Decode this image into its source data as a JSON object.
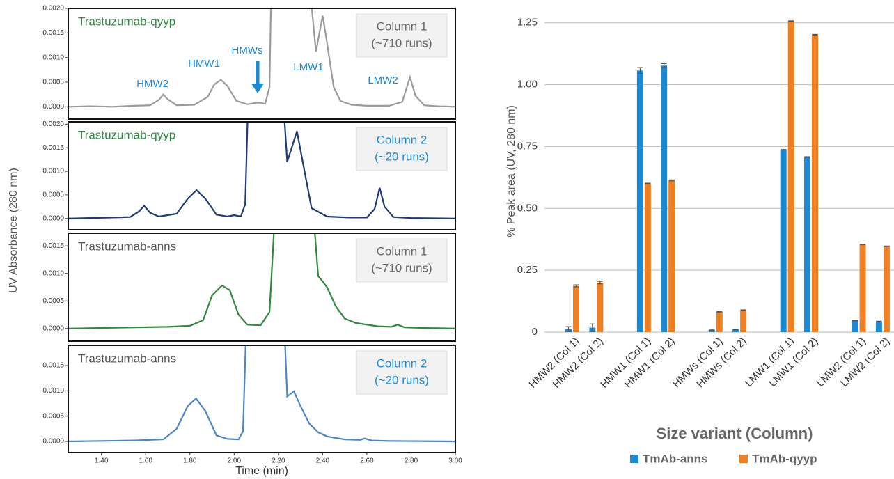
{
  "chart_data": [
    {
      "type": "line",
      "sample": "Trastuzumab-qyyp",
      "sample_color": "#2e8b3e",
      "label_lines": [
        "Column 1",
        "(~710 runs)"
      ],
      "label_color": "#666666",
      "color": "#9a9a9a",
      "ylabel": "UV Absorbance (280 nm)",
      "annotations": [
        "HMW2",
        "HMW1",
        "HMWs",
        "LMW1",
        "LMW2"
      ],
      "annotation_color": "#1a8ad4",
      "xlim": [
        1.25,
        3.0
      ],
      "ylim": [
        -0.00025,
        0.002
      ],
      "yticks": [
        {
          "value": 0,
          "label": "0.0000"
        },
        {
          "value": 0.0005,
          "label": "0.0005"
        },
        {
          "value": 0.001,
          "label": "0.0010"
        },
        {
          "value": 0.0015,
          "label": "0.0015"
        },
        {
          "value": 0.002,
          "label": "0.0020"
        }
      ],
      "x": [
        1.25,
        1.35,
        1.45,
        1.55,
        1.62,
        1.66,
        1.68,
        1.7,
        1.74,
        1.82,
        1.88,
        1.91,
        1.94,
        1.97,
        2.01,
        2.06,
        2.1,
        2.12,
        2.14,
        2.16,
        2.17,
        2.33,
        2.37,
        2.4,
        2.42,
        2.45,
        2.48,
        2.53,
        2.6,
        2.7,
        2.76,
        2.795,
        2.82,
        2.86,
        2.92,
        3.0
      ],
      "values": [
        0.0,
        1e-05,
        0.0,
        2e-05,
        3e-05,
        0.00014,
        0.00025,
        0.00015,
        3e-05,
        4e-05,
        0.0002,
        0.00045,
        0.00055,
        0.00042,
        0.00012,
        5e-05,
        8e-05,
        8e-05,
        6e-05,
        0.0004,
        0.003,
        0.003,
        0.00112,
        0.00185,
        0.0013,
        0.0004,
        0.00012,
        4e-05,
        2e-05,
        2e-05,
        0.0001,
        0.0006,
        0.00022,
        3e-05,
        1e-05,
        0.0
      ]
    },
    {
      "type": "line",
      "sample": "Trastuzumab-qyyp",
      "sample_color": "#2e8b3e",
      "label_lines": [
        "Column 2",
        "(~20 runs)"
      ],
      "label_color": "#1a8ad4",
      "color": "#1f3a7a",
      "xlim": [
        1.25,
        3.0
      ],
      "ylim": [
        -0.00024,
        0.00205
      ],
      "yticks": [
        {
          "value": 0,
          "label": "0.0000"
        },
        {
          "value": 0.0005,
          "label": "0.0005"
        },
        {
          "value": 0.001,
          "label": "0.0010"
        },
        {
          "value": 0.0015,
          "label": "0.0015"
        },
        {
          "value": 0.002,
          "label": "0.0020"
        }
      ],
      "x": [
        1.25,
        1.35,
        1.45,
        1.53,
        1.57,
        1.593,
        1.62,
        1.66,
        1.74,
        1.79,
        1.83,
        1.87,
        1.92,
        1.97,
        2.0,
        2.03,
        2.05,
        2.066,
        2.215,
        2.24,
        2.284,
        2.31,
        2.35,
        2.42,
        2.52,
        2.6,
        2.635,
        2.658,
        2.68,
        2.72,
        2.8,
        3.0
      ],
      "values": [
        0.0,
        1e-05,
        2e-05,
        3e-05,
        0.00015,
        0.00027,
        0.00012,
        4e-05,
        0.0001,
        0.00042,
        0.0006,
        0.00042,
        8e-05,
        4e-05,
        7e-05,
        4e-05,
        0.0003,
        0.003,
        0.003,
        0.0012,
        0.00185,
        0.0012,
        0.00022,
        4e-05,
        2e-05,
        2e-05,
        0.0002,
        0.00065,
        0.00025,
        3e-05,
        1e-05,
        0.0
      ]
    },
    {
      "type": "line",
      "sample": "Trastuzumab-anns",
      "sample_color": "#555555",
      "label_lines": [
        "Column 1",
        "(~710 runs)"
      ],
      "label_color": "#666666",
      "color": "#2e8b3e",
      "xlim": [
        1.25,
        3.0
      ],
      "ylim": [
        -0.00023,
        0.00173
      ],
      "yticks": [
        {
          "value": 0,
          "label": "0.0000"
        },
        {
          "value": 0.0005,
          "label": "0.0005"
        },
        {
          "value": 0.001,
          "label": "0.0010"
        },
        {
          "value": 0.0015,
          "label": "0.0015"
        }
      ],
      "x": [
        1.25,
        1.4,
        1.55,
        1.7,
        1.8,
        1.86,
        1.9,
        1.945,
        1.98,
        2.02,
        2.06,
        2.12,
        2.16,
        2.19,
        2.35,
        2.38,
        2.395,
        2.42,
        2.46,
        2.5,
        2.55,
        2.65,
        2.71,
        2.74,
        2.77,
        2.85,
        3.0
      ],
      "values": [
        0.0,
        1e-05,
        2e-05,
        3e-05,
        5e-05,
        0.00015,
        0.0006,
        0.00078,
        0.0007,
        0.00025,
        7e-05,
        6e-05,
        0.0003,
        0.0025,
        0.0025,
        0.00095,
        0.00088,
        0.00075,
        0.0004,
        0.00018,
        0.0001,
        4e-05,
        3e-05,
        7e-05,
        2e-05,
        1e-05,
        0.0
      ]
    },
    {
      "type": "line",
      "sample": "Trastuzumab-anns",
      "sample_color": "#555555",
      "label_lines": [
        "Column 2",
        "(~20 runs)"
      ],
      "label_color": "#1a8ad4",
      "color": "#4a86c8",
      "xlabel": "Time (min)",
      "xlim": [
        1.25,
        3.0
      ],
      "ylim": [
        -0.00022,
        0.0019
      ],
      "xticks": [
        {
          "value": 1.4,
          "label": "1.40"
        },
        {
          "value": 1.6,
          "label": "1.60"
        },
        {
          "value": 1.8,
          "label": "1.80"
        },
        {
          "value": 2.0,
          "label": "2.00"
        },
        {
          "value": 2.2,
          "label": "2.20"
        },
        {
          "value": 2.4,
          "label": "2.40"
        },
        {
          "value": 2.6,
          "label": "2.60"
        },
        {
          "value": 2.8,
          "label": "2.80"
        },
        {
          "value": 3.0,
          "label": "3.00"
        }
      ],
      "yticks": [
        {
          "value": 0,
          "label": "0.0000"
        },
        {
          "value": 0.0005,
          "label": "0.0005"
        },
        {
          "value": 0.001,
          "label": "0.0010"
        },
        {
          "value": 0.0015,
          "label": "0.0015"
        }
      ],
      "x": [
        1.25,
        1.4,
        1.55,
        1.68,
        1.74,
        1.79,
        1.828,
        1.87,
        1.92,
        1.97,
        2.02,
        2.04,
        2.06,
        2.22,
        2.24,
        2.27,
        2.3,
        2.34,
        2.38,
        2.42,
        2.5,
        2.57,
        2.59,
        2.62,
        2.7,
        3.0
      ],
      "values": [
        0.0,
        1e-05,
        2e-05,
        4e-05,
        0.00025,
        0.0007,
        0.00085,
        0.0006,
        0.00012,
        5e-05,
        4e-05,
        0.0002,
        0.003,
        0.003,
        0.00089,
        0.00099,
        0.0007,
        0.00035,
        0.00018,
        0.0001,
        4e-05,
        3e-05,
        6e-05,
        2e-05,
        1e-05,
        0.0
      ]
    },
    {
      "type": "bar",
      "ylabel": "% Peak area (UV, 280 nm)",
      "xlabel": "Size variant (Column)",
      "categories": [
        "HMW2 (Col 1)",
        "HMW2 (Col 2)",
        "HMW1 (Col 1)",
        "HMW1 (Col 2)",
        "HMWs (Col 1)",
        "HMWs (Col 2)",
        "LMW1 (Col 1)",
        "LMW1 (Col 2)",
        "LMW2 (Col 1)",
        "LMW2 (Col 2)"
      ],
      "series": [
        {
          "name": "TmAb-anns",
          "color": "#1a8ad4",
          "values": [
            0.012,
            0.018,
            1.057,
            1.077,
            0.008,
            0.01,
            0.737,
            0.708,
            0.046,
            0.043
          ],
          "errors": [
            0.01,
            0.015,
            0.012,
            0.008,
            0.001,
            0.001,
            0.001,
            0.001,
            0.001,
            0.001
          ]
        },
        {
          "name": "TmAb-qyyp",
          "color": "#f07f22",
          "values": [
            0.187,
            0.2,
            0.601,
            0.613,
            0.082,
            0.089,
            1.257,
            1.202,
            0.354,
            0.347
          ],
          "errors": [
            0.004,
            0.005,
            0.001,
            0.002,
            0.001,
            0.001,
            0.001,
            0.001,
            0.001,
            0.001
          ]
        }
      ],
      "ylim": [
        0,
        1.3
      ],
      "yticks": [
        0,
        0.25,
        {
          "value": 0.5,
          "label": "0.50"
        },
        0.75,
        {
          "value": 1.0,
          "label": "1.00"
        },
        1.25
      ],
      "grid": true
    }
  ]
}
